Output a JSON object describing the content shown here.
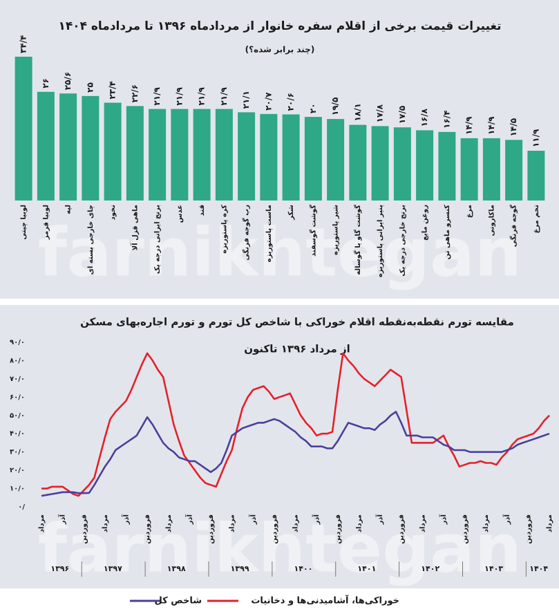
{
  "chart_data": [
    {
      "type": "bar",
      "title": "تغییرات قیمت برخی از اقلام سفره خانوار از مردادماه ۱۳۹۶ تا مردادماه ۱۴۰۴",
      "subtitle": "(چند برابر شده؟)",
      "watermark": "farnikhtegan",
      "color": "#2ea886",
      "categories": [
        "لوبیا چیتی",
        "لوبیا قرمز",
        "لپه",
        "چای خارجی بسته ای",
        "نخود",
        "ماهی قزل آلا",
        "برنج ایرانی درجه یک",
        "عدس",
        "قند",
        "کره پاستوریزه",
        "رب گوجه فرنگی",
        "ماست پاستوریزه",
        "شکر",
        "گوشت گوسفند",
        "شیر پاستوریزه",
        "گوشت گاو یا گوساله",
        "پنیر ایرانی پاستوریزه",
        "برنج خارجی درجه یک",
        "روغن مایع",
        "کنسرو ماهی تن",
        "مرغ",
        "ماکارونی",
        "گوجه فرنگی",
        "تخم مرغ"
      ],
      "values": [
        34.4,
        26,
        25.6,
        25,
        23.4,
        22.6,
        21.9,
        21.9,
        21.9,
        21.9,
        21.1,
        20.7,
        20.6,
        20,
        19.5,
        18.1,
        17.8,
        17.5,
        16.8,
        16.4,
        14.9,
        14.9,
        14.5,
        11.9
      ],
      "value_labels": [
        "۳۴/۴",
        "۲۶",
        "۲۵/۶",
        "۲۵",
        "۲۳/۴",
        "۲۲/۶",
        "۲۱/۹",
        "۲۱/۹",
        "۲۱/۹",
        "۲۱/۹",
        "۲۱/۱",
        "۲۰/۷",
        "۲۰/۶",
        "۲۰",
        "۱۹/۵",
        "۱۸/۱",
        "۱۷/۸",
        "۱۷/۵",
        "۱۶/۸",
        "۱۶/۴",
        "۱۴/۹",
        "۱۴/۹",
        "۱۴/۵",
        "۱۱/۹"
      ]
    },
    {
      "type": "line",
      "title": "مقایسه تورم نقطه‌به‌نقطه اقلام خوراکی با شاخص کل تورم و تورم اجاره‌بهای مسکن",
      "subtitle": "از مرداد ۱۳۹۶ تاکنون",
      "watermark": "farnikhtegan",
      "legend": "bottom",
      "grid": false,
      "ylim": [
        0,
        90
      ],
      "yticks": [
        {
          "value": 0,
          "label": "۰/"
        },
        {
          "value": 10,
          "label": "۱۰/۰"
        },
        {
          "value": 20,
          "label": "۲۰/۰"
        },
        {
          "value": 30,
          "label": "۳۰/۰"
        },
        {
          "value": 40,
          "label": "۴۰/۰"
        },
        {
          "value": 50,
          "label": "۵۰/۰"
        },
        {
          "value": 60,
          "label": "۶۰/۰"
        },
        {
          "value": 70,
          "label": "۷۰/۰"
        },
        {
          "value": 80,
          "label": "۸۰/۰"
        },
        {
          "value": 90,
          "label": "۹۰/۰"
        }
      ],
      "categories": [
        "مرداد",
        null,
        null,
        null,
        "آذر",
        null,
        null,
        null,
        "فروردین",
        null,
        null,
        null,
        "مرداد",
        null,
        null,
        null,
        "آذر",
        null,
        null,
        null,
        "فروردین",
        null,
        null,
        null,
        "مرداد",
        null,
        null,
        null,
        "آذر",
        null,
        null,
        null,
        "فروردین",
        null,
        null,
        null,
        "مرداد",
        null,
        null,
        null,
        "آذر",
        null,
        null,
        null,
        "فروردین",
        null,
        null,
        null,
        "مرداد",
        null,
        null,
        null,
        "آذر",
        null,
        null,
        null,
        "فروردین",
        null,
        null,
        null,
        "مرداد",
        null,
        null,
        null,
        "آذر",
        null,
        null,
        null,
        "فروردین",
        null,
        null,
        null,
        "مرداد",
        null,
        null,
        null,
        "آذر",
        null,
        null,
        null,
        "فروردین",
        null,
        null,
        null,
        "مرداد",
        null,
        null,
        null,
        "آذر",
        null,
        null,
        null,
        "فروردین",
        null,
        null,
        null,
        "مرداد"
      ],
      "x_groups": [
        "۱۳۹۶",
        "۱۳۹۷",
        "۱۳۹۸",
        "۱۳۹۹",
        "۱۴۰۰",
        "۱۴۰۱",
        "۱۴۰۲",
        "۱۴۰۳",
        "۱۴۰۴"
      ],
      "series": [
        {
          "name": "شاخص کل",
          "color": "#4a3f9c",
          "values": [
            6,
            6.5,
            7,
            7.5,
            8,
            8,
            8,
            7.5,
            7.5,
            7.6,
            12,
            17,
            22,
            26,
            31,
            33,
            35,
            37,
            39,
            44,
            49,
            45,
            40,
            35,
            32,
            30,
            27,
            26,
            25,
            25,
            23,
            21,
            19,
            21,
            24,
            31,
            39,
            41,
            43,
            44,
            45,
            46,
            46,
            47,
            48,
            47,
            45,
            43,
            41,
            38,
            36,
            33,
            33,
            33,
            32,
            32,
            36,
            41,
            46,
            45,
            44,
            43,
            43,
            42,
            45,
            47,
            50,
            52,
            46,
            39,
            39,
            39,
            38,
            38,
            38,
            36,
            34,
            33,
            31,
            31,
            31,
            30,
            30,
            30,
            30,
            30,
            30,
            30,
            31,
            32,
            34,
            35,
            36,
            37,
            38,
            39,
            40
          ]
        },
        {
          "name": "خوراکی‌ها، آشامیدنی‌ها و دخانیات",
          "color": "#e61f2a",
          "values": [
            10,
            10,
            11,
            11,
            11,
            9,
            7,
            6,
            9,
            12,
            16,
            27,
            38,
            48,
            52,
            55,
            58,
            64,
            71,
            78,
            84,
            80,
            75,
            71,
            58,
            45,
            36,
            28,
            24,
            20,
            16,
            13,
            12,
            11,
            18,
            25,
            31,
            43,
            54,
            60,
            64,
            65,
            66,
            63,
            59,
            60,
            61,
            62,
            56,
            50,
            46,
            43,
            39,
            40,
            40,
            41,
            64,
            84,
            80,
            77,
            73,
            70,
            68,
            66,
            69,
            72,
            75,
            73,
            71,
            53,
            35,
            35,
            35,
            35,
            35,
            37,
            39,
            33,
            28,
            22,
            23,
            24,
            24,
            25,
            24,
            24,
            23,
            27,
            30,
            34,
            37,
            38,
            39,
            40,
            43,
            47,
            50
          ]
        }
      ]
    }
  ]
}
